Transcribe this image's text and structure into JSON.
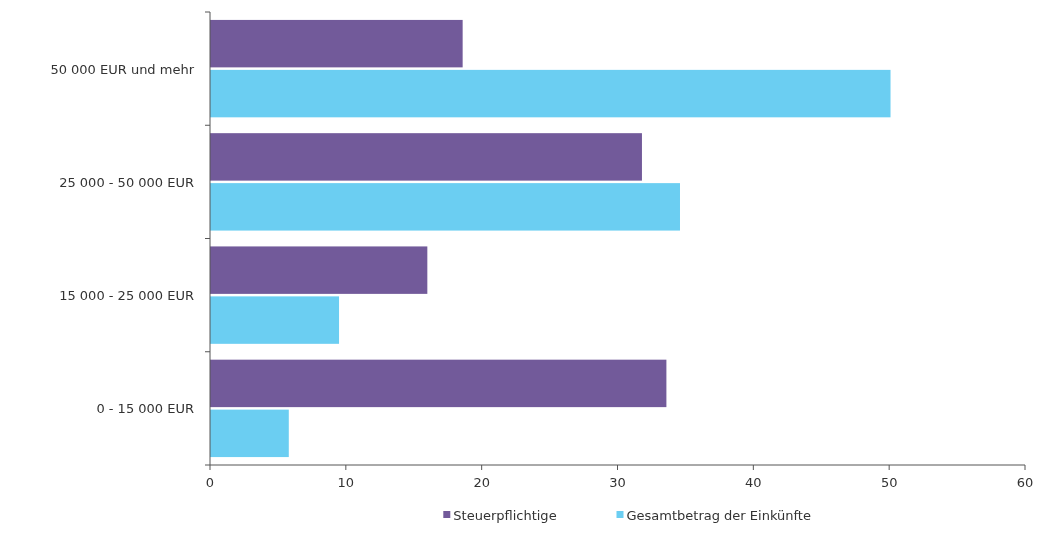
{
  "chart_data": {
    "type": "bar",
    "orientation": "horizontal",
    "categories": [
      "50 000 EUR und mehr",
      "25 000 - 50 000 EUR",
      "15 000 - 25 000 EUR",
      "0 - 15 000 EUR"
    ],
    "series": [
      {
        "name": "Steuerpflichtige",
        "color": "#725a9a",
        "values": [
          18.6,
          31.8,
          16.0,
          33.6
        ]
      },
      {
        "name": "Gesamtbetrag der Einkünfte",
        "color": "#6bcef2",
        "values": [
          50.1,
          34.6,
          9.5,
          5.8
        ]
      }
    ],
    "xlim": [
      0,
      60
    ],
    "xticks": [
      0,
      10,
      20,
      30,
      40,
      50,
      60
    ],
    "grid": false,
    "legend": "bottom"
  }
}
